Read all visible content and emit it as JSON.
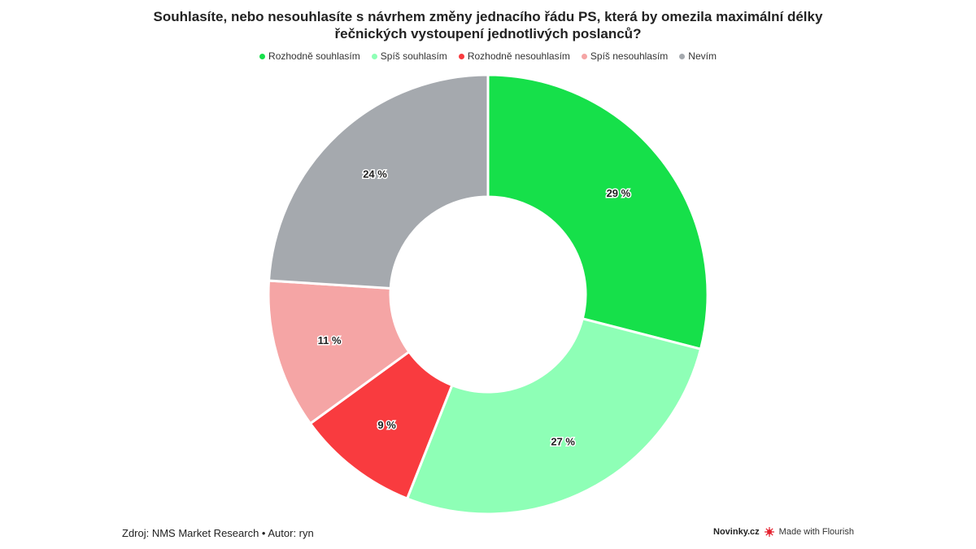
{
  "chart_data": {
    "type": "pie",
    "donut": true,
    "title": "Souhlasíte, nebo nesouhlasíte s návrhem změny jednacího řádu PS, která by omezila maximální délky řečnických vystoupení jednotlivých poslanců?",
    "categories": [
      "Rozhodně souhlasím",
      "Spíš souhlasím",
      "Rozhodně nesouhlasím",
      "Spíš nesouhlasím",
      "Nevím"
    ],
    "values": [
      29,
      27,
      9,
      11,
      24
    ],
    "labels": [
      "29 %",
      "27 %",
      "9 %",
      "11 %",
      "24 %"
    ],
    "colors": [
      "#16e04a",
      "#8effb6",
      "#f93b3f",
      "#f5a5a5",
      "#a5a9ae"
    ],
    "legend_position": "top-center"
  },
  "footer": {
    "source": "Zdroj: NMS Market Research • Autor: ryn",
    "brand": "Novinky.cz",
    "made_with": "Made with Flourish"
  }
}
